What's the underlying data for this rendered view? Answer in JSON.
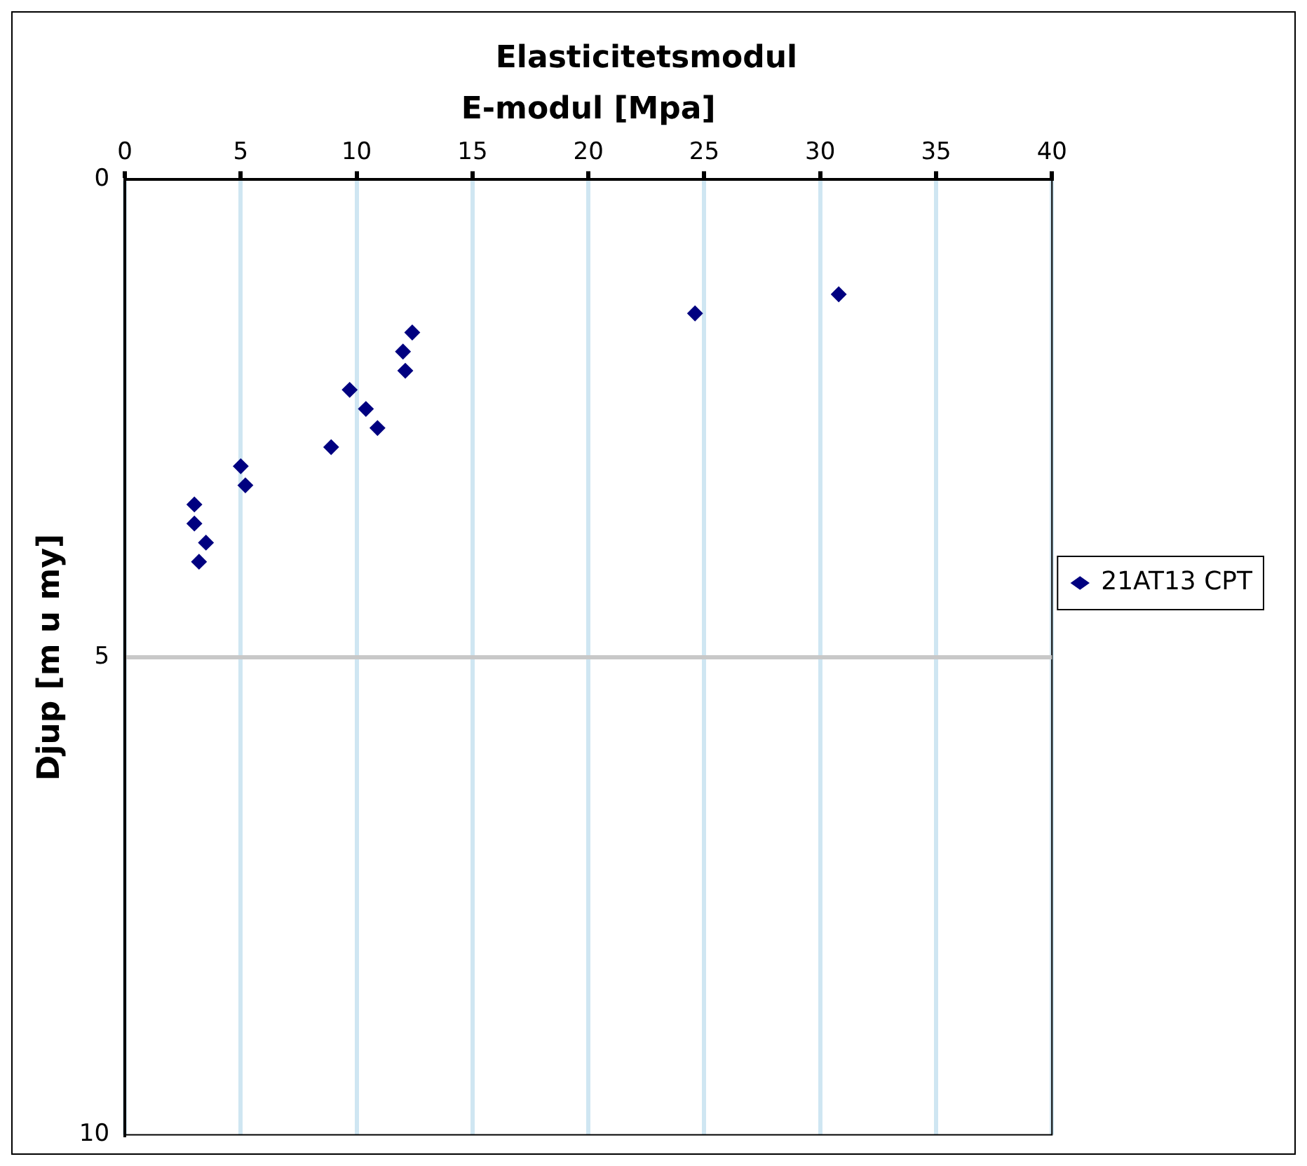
{
  "chart_data": {
    "type": "scatter",
    "title": "Elasticitetsmodul",
    "xlabel": "E-modul [Mpa]",
    "ylabel": "Djup [m u my]",
    "xlim": [
      0,
      40
    ],
    "xticks": [
      0,
      5,
      10,
      15,
      20,
      25,
      30,
      35,
      40
    ],
    "ylim": [
      10,
      0
    ],
    "yticks": [
      0,
      5,
      10
    ],
    "grid": "x",
    "ref_lines": [
      {
        "axis": "y",
        "value": 5,
        "color": "#c8c8c8"
      }
    ],
    "legend": "right",
    "marker": "diamond",
    "series": [
      {
        "name": "21AT13 CPT",
        "color": "#000080",
        "x": [
          30.8,
          24.6,
          12.4,
          12.0,
          12.1,
          9.7,
          10.4,
          10.9,
          8.9,
          5.0,
          5.2,
          3.0,
          3.0,
          3.5,
          3.2
        ],
        "values": [
          1.2,
          1.4,
          1.6,
          1.8,
          2.0,
          2.2,
          2.4,
          2.6,
          2.8,
          3.0,
          3.2,
          3.4,
          3.6,
          3.8,
          4.0
        ]
      }
    ]
  }
}
